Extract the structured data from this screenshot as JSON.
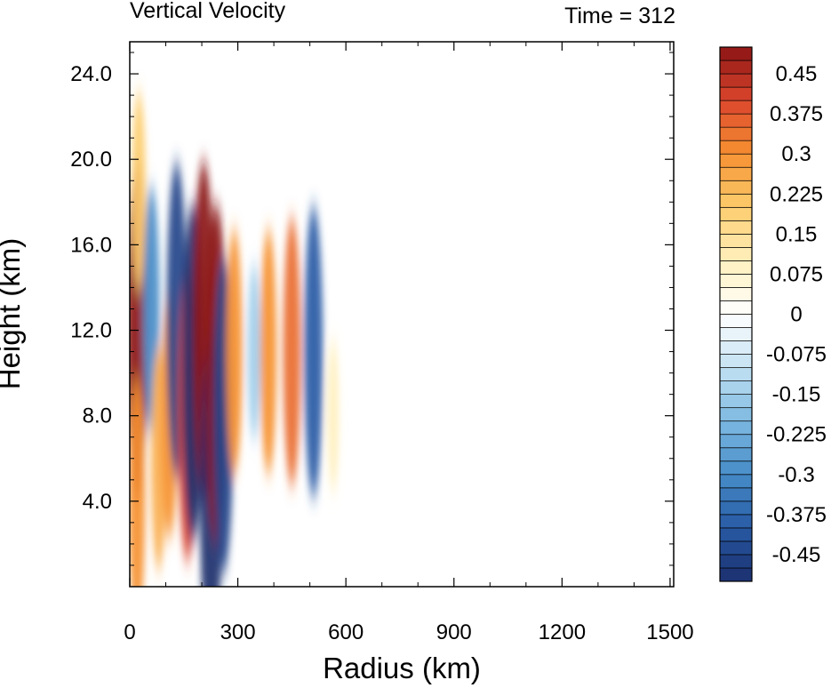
{
  "chart_data": {
    "type": "heatmap",
    "title_left": "Vertical Velocity",
    "title_right": "Time = 312",
    "xlabel": "Radius (km)",
    "ylabel": "Height (km)",
    "xlim": [
      0,
      1510
    ],
    "ylim": [
      0,
      25.5
    ],
    "x_ticks": [
      {
        "value": 0,
        "label": "0"
      },
      {
        "value": 300,
        "label": "300"
      },
      {
        "value": 600,
        "label": "600"
      },
      {
        "value": 900,
        "label": "900"
      },
      {
        "value": 1200,
        "label": "1200"
      },
      {
        "value": 1500,
        "label": "1500"
      }
    ],
    "y_ticks": [
      {
        "value": 4,
        "label": "4.0"
      },
      {
        "value": 8,
        "label": "8.0"
      },
      {
        "value": 12,
        "label": "12.0"
      },
      {
        "value": 16,
        "label": "16.0"
      },
      {
        "value": 20,
        "label": "20.0"
      },
      {
        "value": 24,
        "label": "24.0"
      }
    ],
    "colorbar": {
      "levels": [
        -0.5,
        -0.475,
        -0.45,
        -0.425,
        -0.4,
        -0.375,
        -0.35,
        -0.325,
        -0.3,
        -0.275,
        -0.25,
        -0.225,
        -0.2,
        -0.175,
        -0.15,
        -0.125,
        -0.1,
        -0.075,
        -0.05,
        -0.025,
        0,
        0.025,
        0.05,
        0.075,
        0.1,
        0.125,
        0.15,
        0.175,
        0.2,
        0.225,
        0.25,
        0.275,
        0.3,
        0.325,
        0.35,
        0.375,
        0.4,
        0.425,
        0.45,
        0.475,
        0.5
      ],
      "tick_labels": [
        {
          "value": -0.45,
          "label": "-0.45"
        },
        {
          "value": -0.375,
          "label": "-0.375"
        },
        {
          "value": -0.3,
          "label": "-0.3"
        },
        {
          "value": -0.225,
          "label": "-0.225"
        },
        {
          "value": -0.15,
          "label": "-0.15"
        },
        {
          "value": -0.075,
          "label": "-0.075"
        },
        {
          "value": 0,
          "label": "0"
        },
        {
          "value": 0.075,
          "label": "0.075"
        },
        {
          "value": 0.15,
          "label": "0.15"
        },
        {
          "value": 0.225,
          "label": "0.225"
        },
        {
          "value": 0.3,
          "label": "0.3"
        },
        {
          "value": 0.375,
          "label": "0.375"
        },
        {
          "value": 0.45,
          "label": "0.45"
        }
      ],
      "colormap": "blue-white-red diverging",
      "color_negative_end": "#1b2f6e",
      "color_zero": "#ffffff",
      "color_positive_end": "#8c1515"
    },
    "features": [
      {
        "x": 20,
        "y": 12,
        "value": 0.5
      },
      {
        "x": 20,
        "y": 4,
        "value": 0.3
      },
      {
        "x": 25,
        "y": 18.5,
        "value": 0.2
      },
      {
        "x": 60,
        "y": 13,
        "value": -0.3
      },
      {
        "x": 80,
        "y": 6,
        "value": 0.25
      },
      {
        "x": 110,
        "y": 8,
        "value": 0.3
      },
      {
        "x": 130,
        "y": 12.5,
        "value": -0.45
      },
      {
        "x": 160,
        "y": 8,
        "value": 0.4
      },
      {
        "x": 175,
        "y": 10,
        "value": -0.5
      },
      {
        "x": 205,
        "y": 12,
        "value": 0.5
      },
      {
        "x": 225,
        "y": 4,
        "value": -0.5
      },
      {
        "x": 240,
        "y": 10,
        "value": 0.5
      },
      {
        "x": 260,
        "y": 8,
        "value": -0.45
      },
      {
        "x": 290,
        "y": 11,
        "value": 0.3
      },
      {
        "x": 345,
        "y": 11,
        "value": -0.15
      },
      {
        "x": 385,
        "y": 11,
        "value": 0.3
      },
      {
        "x": 450,
        "y": 11,
        "value": 0.35
      },
      {
        "x": 510,
        "y": 11,
        "value": -0.4
      },
      {
        "x": 565,
        "y": 8,
        "value": 0.1
      }
    ]
  }
}
